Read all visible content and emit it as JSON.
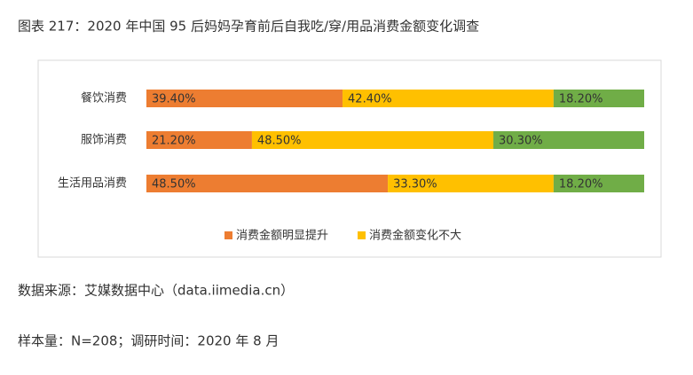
{
  "chart_data": {
    "type": "stacked-bar-horizontal",
    "title": "图表 217：2020 年中国 95 后妈妈孕育前后自我吃/穿/用品消费金额变化调查",
    "categories": [
      "餐饮消费",
      "服饰消费",
      "生活用品消费"
    ],
    "xlim": [
      0,
      100
    ],
    "series": [
      {
        "name": "消费金额明显提升",
        "color": "#ed7d31",
        "values": [
          39.4,
          21.2,
          48.5
        ],
        "value_labels": [
          "39.40%",
          "21.20%",
          "48.50%"
        ]
      },
      {
        "name": "消费金额变化不大",
        "color": "#ffc000",
        "values": [
          42.4,
          48.5,
          33.3
        ],
        "value_labels": [
          "42.40%",
          "48.50%",
          "33.30%"
        ]
      },
      {
        "color": "#70ad47",
        "values": [
          18.2,
          30.3,
          18.2
        ],
        "value_labels": [
          "18.20%",
          "30.30%",
          "18.20%"
        ]
      }
    ],
    "legend": "bottom"
  },
  "notes": [
    "数据来源：艾媒数据中心（data.iimedia.cn）",
    "样本量：N=208；调研时间：2020 年 8 月"
  ]
}
